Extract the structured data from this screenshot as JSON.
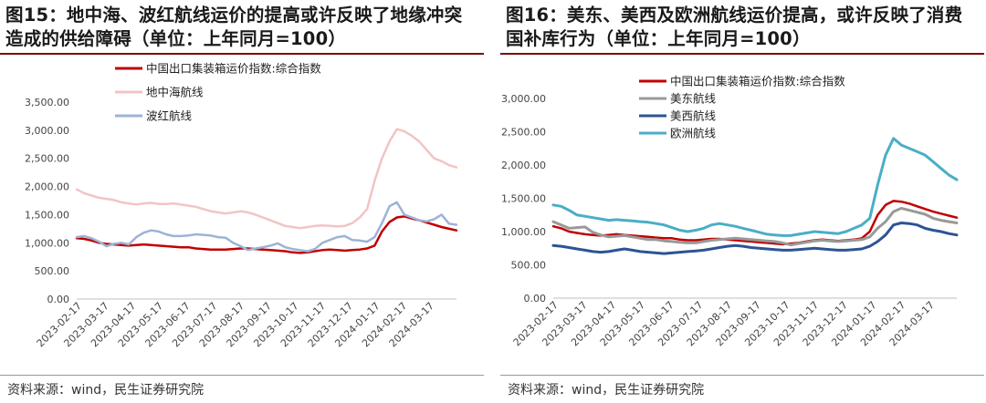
{
  "panels": [
    {
      "title": "图15：地中海、波红航线运价的提高或许反映了地缘冲突造成的供给障碍（单位：上年同月=100）",
      "source": "资料来源：wind，民生证券研究院"
    },
    {
      "title": "图16：美东、美西及欧洲航线运价提高，或许反映了消费国补库行为（单位：上年同月=100）",
      "source": "资料来源：wind，民生证券研究院"
    }
  ],
  "chart_data": [
    {
      "type": "line",
      "title": "图15：地中海、波红航线运价的提高或许反映了地缘冲突造成的供给障碍（单位：上年同月=100）",
      "x_labels": [
        "2023-02-17",
        "2023-03-17",
        "2023-04-17",
        "2023-05-17",
        "2023-06-17",
        "2023-07-17",
        "2023-08-17",
        "2023-09-17",
        "2023-10-17",
        "2023-11-17",
        "2023-12-17",
        "2024-01-17",
        "2024-02-17",
        "2024-03-17"
      ],
      "ylim": [
        0,
        3500
      ],
      "y_ticks": [
        "0.00",
        "500.00",
        "1,000.00",
        "1,500.00",
        "2,000.00",
        "2,500.00",
        "3,000.00",
        "3,500.00"
      ],
      "legend_position": "top-left",
      "series": [
        {
          "name": "中国出口集装箱运价指数:综合指数",
          "color": "#c00000",
          "width": 2.5,
          "values": [
            1080,
            1070,
            1040,
            1000,
            980,
            970,
            960,
            950,
            960,
            970,
            960,
            950,
            940,
            930,
            920,
            920,
            900,
            890,
            880,
            880,
            880,
            890,
            900,
            900,
            890,
            880,
            870,
            860,
            850,
            830,
            820,
            830,
            850,
            870,
            880,
            870,
            860,
            870,
            880,
            900,
            950,
            1200,
            1370,
            1450,
            1470,
            1430,
            1400,
            1360,
            1320,
            1280,
            1250,
            1220
          ]
        },
        {
          "name": "地中海航线",
          "color": "#f2c4c4",
          "width": 2.5,
          "values": [
            1950,
            1880,
            1840,
            1800,
            1780,
            1760,
            1720,
            1700,
            1680,
            1700,
            1710,
            1690,
            1690,
            1700,
            1680,
            1660,
            1640,
            1600,
            1560,
            1540,
            1520,
            1540,
            1560,
            1540,
            1500,
            1450,
            1400,
            1350,
            1300,
            1280,
            1260,
            1280,
            1300,
            1310,
            1300,
            1290,
            1300,
            1350,
            1450,
            1600,
            2100,
            2500,
            2800,
            3020,
            2980,
            2900,
            2800,
            2650,
            2500,
            2450,
            2380,
            2340
          ]
        },
        {
          "name": "波红航线",
          "color": "#9db3d6",
          "width": 2.5,
          "values": [
            1100,
            1120,
            1080,
            1020,
            940,
            980,
            1000,
            970,
            1100,
            1180,
            1220,
            1200,
            1150,
            1120,
            1120,
            1130,
            1150,
            1140,
            1130,
            1100,
            1090,
            1000,
            940,
            870,
            900,
            920,
            950,
            990,
            920,
            890,
            870,
            850,
            890,
            1000,
            1050,
            1100,
            1120,
            1050,
            1040,
            1020,
            1100,
            1350,
            1650,
            1720,
            1500,
            1450,
            1400,
            1380,
            1420,
            1500,
            1340,
            1320
          ]
        }
      ]
    },
    {
      "type": "line",
      "title": "图16：美东、美西及欧洲航线运价提高，或许反映了消费国补库行为（单位：上年同月=100）",
      "x_labels": [
        "2023-02-17",
        "2023-03-17",
        "2023-04-17",
        "2023-05-17",
        "2023-06-17",
        "2023-07-17",
        "2023-08-17",
        "2023-09-17",
        "2023-10-17",
        "2023-11-17",
        "2023-12-17",
        "2024-01-17",
        "2024-02-17",
        "2024-03-17"
      ],
      "ylim": [
        0,
        3000
      ],
      "y_ticks": [
        "0.00",
        "500.00",
        "1,000.00",
        "1,500.00",
        "2,000.00",
        "2,500.00",
        "3,000.00"
      ],
      "legend_position": "top-left",
      "series": [
        {
          "name": "中国出口集装箱运价指数:综合指数",
          "color": "#c00000",
          "width": 2.5,
          "values": [
            1080,
            1050,
            1000,
            980,
            960,
            950,
            940,
            950,
            960,
            950,
            940,
            930,
            920,
            910,
            900,
            900,
            880,
            870,
            870,
            880,
            890,
            890,
            880,
            870,
            860,
            850,
            840,
            830,
            820,
            810,
            820,
            830,
            850,
            870,
            880,
            870,
            860,
            870,
            880,
            900,
            1000,
            1250,
            1400,
            1460,
            1450,
            1420,
            1380,
            1340,
            1300,
            1270,
            1240,
            1210
          ]
        },
        {
          "name": "美东航线",
          "color": "#999999",
          "width": 3,
          "values": [
            1150,
            1100,
            1050,
            1060,
            1070,
            990,
            950,
            920,
            930,
            940,
            920,
            900,
            880,
            880,
            860,
            850,
            840,
            830,
            830,
            850,
            870,
            880,
            890,
            900,
            890,
            880,
            870,
            860,
            850,
            830,
            800,
            820,
            840,
            860,
            870,
            860,
            850,
            860,
            870,
            880,
            920,
            1050,
            1150,
            1300,
            1350,
            1320,
            1290,
            1260,
            1200,
            1170,
            1150,
            1130
          ]
        },
        {
          "name": "美西航线",
          "color": "#2c5494",
          "width": 3,
          "values": [
            790,
            780,
            760,
            740,
            720,
            700,
            690,
            700,
            720,
            740,
            720,
            700,
            690,
            680,
            670,
            680,
            690,
            700,
            710,
            720,
            740,
            760,
            780,
            790,
            780,
            760,
            750,
            740,
            730,
            720,
            720,
            730,
            740,
            750,
            740,
            730,
            720,
            720,
            730,
            740,
            780,
            850,
            950,
            1100,
            1130,
            1120,
            1100,
            1050,
            1020,
            1000,
            970,
            950
          ]
        },
        {
          "name": "欧洲航线",
          "color": "#4aaec6",
          "width": 3,
          "values": [
            1400,
            1380,
            1320,
            1250,
            1230,
            1210,
            1190,
            1170,
            1180,
            1170,
            1160,
            1150,
            1140,
            1120,
            1100,
            1060,
            1020,
            1000,
            1020,
            1050,
            1100,
            1120,
            1100,
            1080,
            1050,
            1020,
            990,
            960,
            950,
            940,
            940,
            960,
            980,
            1000,
            990,
            980,
            970,
            1000,
            1050,
            1100,
            1200,
            1700,
            2150,
            2400,
            2300,
            2250,
            2200,
            2150,
            2050,
            1950,
            1850,
            1780
          ]
        }
      ]
    }
  ]
}
